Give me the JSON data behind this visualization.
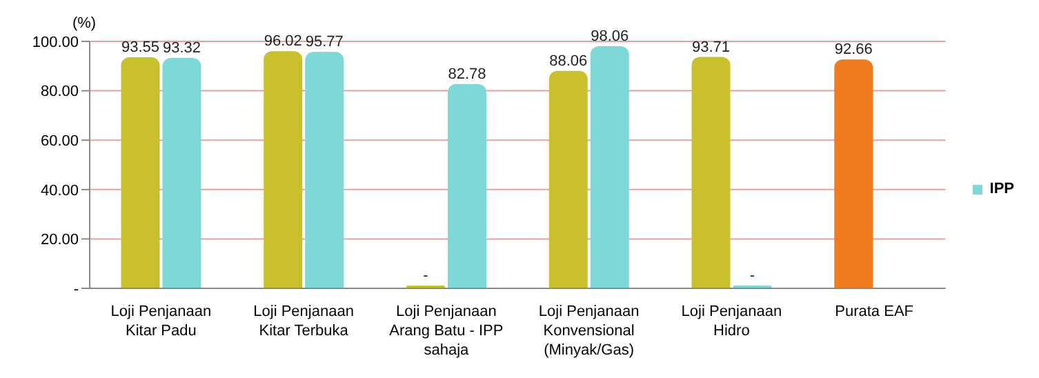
{
  "chart_data": {
    "type": "bar",
    "ylabel": "(%)",
    "categories": [
      "Loji Penjanaan Kitar Padu",
      "Loji Penjanaan Kitar Terbuka",
      "Loji Penjanaan Arang Batu - IPP sahaja",
      "Loji Penjanaan Konvensional (Minyak/Gas)",
      "Loji Penjanaan Hidro",
      "Purata EAF"
    ],
    "series": [
      {
        "color": "#c8c02c",
        "colors": [
          "#c8c02c",
          "#c8c02c",
          "#c8c02c",
          "#c8c02c",
          "#c8c02c",
          "#f07a20"
        ],
        "values": [
          93.55,
          96.02,
          0,
          88.06,
          93.71,
          92.66
        ],
        "value_labels": [
          "93.55",
          "96.02",
          "-",
          "88.06",
          "93.71",
          "92.66"
        ]
      },
      {
        "name": "IPP",
        "color": "#7fd8d8",
        "values": [
          93.32,
          95.77,
          82.78,
          98.06,
          0,
          null
        ],
        "value_labels": [
          "93.32",
          "95.77",
          "82.78",
          "98.06",
          "-",
          null
        ]
      }
    ],
    "ylim": [
      0,
      100
    ],
    "yticks": [
      {
        "value": 0,
        "label": "-"
      },
      {
        "value": 20,
        "label": "20.00"
      },
      {
        "value": 40,
        "label": "40.00"
      },
      {
        "value": 60,
        "label": "60.00"
      },
      {
        "value": 80,
        "label": "80.00"
      },
      {
        "value": 100,
        "label": "100.00"
      }
    ],
    "grid": "y",
    "legend": "right"
  }
}
